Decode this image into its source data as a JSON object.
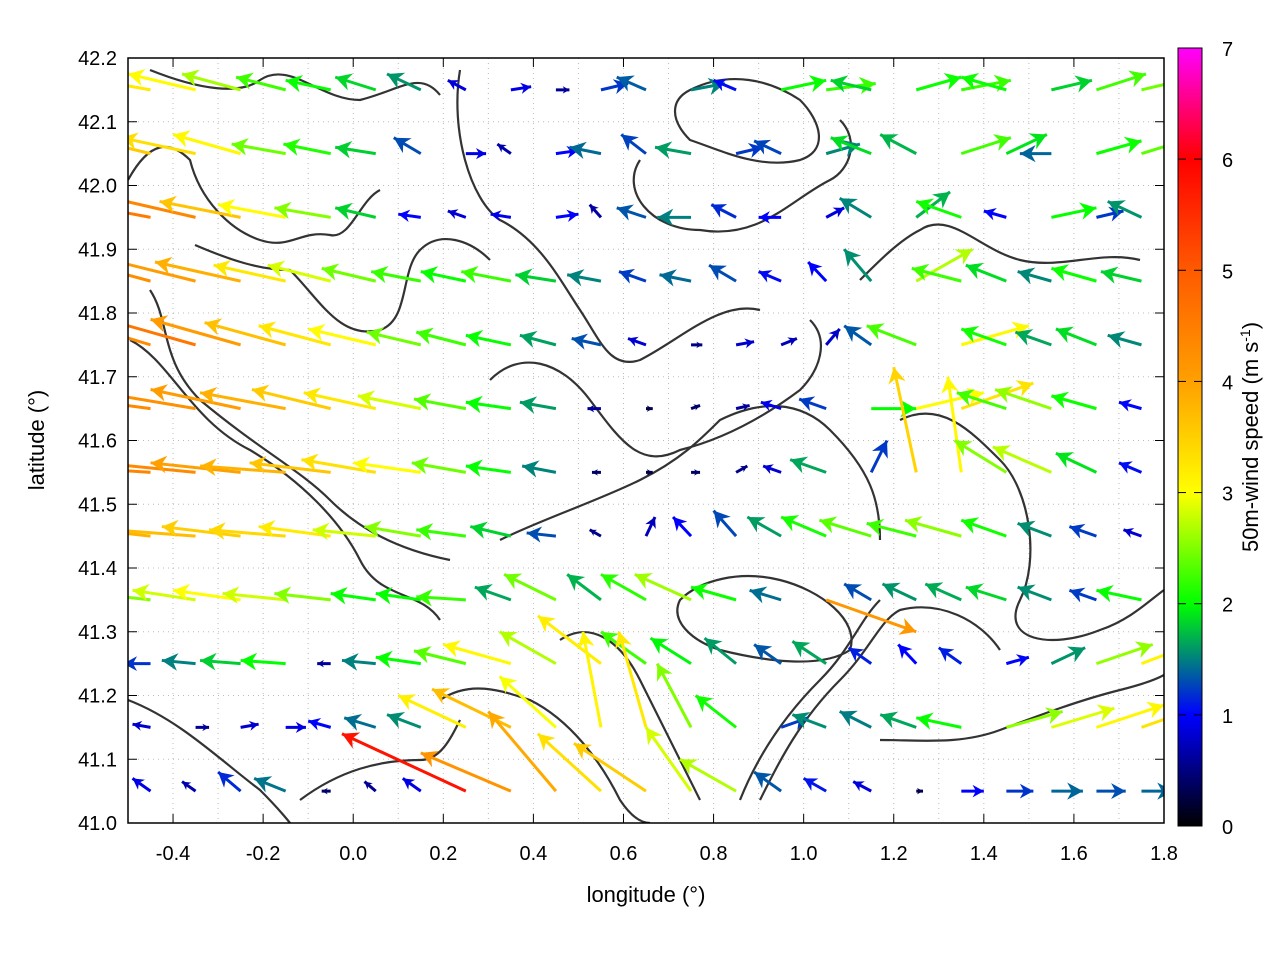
{
  "chart_data": {
    "type": "vector-field",
    "xlabel": "longitude (°)",
    "ylabel": "latitude (°)",
    "xlim": [
      -0.5,
      1.8
    ],
    "ylim": [
      41.0,
      42.2
    ],
    "xticks": [
      "-0.4",
      "-0.2",
      "0.0",
      "0.2",
      "0.4",
      "0.6",
      "0.8",
      "1.0",
      "1.2",
      "1.4",
      "1.6",
      "1.8"
    ],
    "yticks": [
      "41.0",
      "41.1",
      "41.2",
      "41.3",
      "41.4",
      "41.5",
      "41.6",
      "41.7",
      "41.8",
      "41.9",
      "42.0",
      "42.1",
      "42.2"
    ],
    "grid": true,
    "colorbar": {
      "label": "50m-wind speed (m s",
      "label_sup": "-1",
      "label_end": ")",
      "range": [
        0,
        7
      ],
      "ticks": [
        "0",
        "1",
        "2",
        "3",
        "4",
        "5",
        "6",
        "7"
      ],
      "colors": [
        "#000000",
        "#0000ff",
        "#00ff00",
        "#ffff00",
        "#ffa000",
        "#ff5a00",
        "#ff0000",
        "#ff00ff"
      ]
    },
    "contour_color": "#333333",
    "vector_units": "m s-1",
    "lon": [
      -0.45,
      -0.35,
      -0.25,
      -0.15,
      -0.05,
      0.05,
      0.15,
      0.25,
      0.35,
      0.45,
      0.55,
      0.65,
      0.75,
      0.85,
      0.95,
      1.05,
      1.15,
      1.25,
      1.35,
      1.45,
      1.55,
      1.65,
      1.75
    ],
    "lat": [
      42.15,
      42.05,
      41.95,
      41.85,
      41.75,
      41.65,
      41.55,
      41.45,
      41.35,
      41.25,
      41.15,
      41.05
    ],
    "uv": [
      [
        [
          -3.2,
          0.4
        ],
        [
          -3,
          0.5
        ],
        [
          -2.6,
          0.5
        ],
        [
          -2.2,
          0.4
        ],
        [
          -2,
          0.3
        ],
        [
          -1.8,
          0.4
        ],
        [
          -1.5,
          0.5
        ],
        [
          -0.8,
          0.3
        ],
        [
          0.9,
          0.1
        ],
        [
          0.6,
          0
        ],
        [
          1.2,
          0.2
        ],
        [
          -1.3,
          0.4
        ],
        [
          1.5,
          0.2
        ],
        [
          -1,
          0.3
        ],
        [
          2,
          0.3
        ],
        [
          2.2,
          0.2
        ],
        [
          -1.8,
          0.3
        ],
        [
          2,
          0.4
        ],
        [
          2.2,
          0.3
        ],
        [
          -2,
          0.4
        ],
        [
          1.8,
          0.3
        ],
        [
          2.2,
          0.5
        ],
        [
          2.4,
          0.4
        ]
      ],
      [
        [
          -3.5,
          0.6
        ],
        [
          -3.3,
          0.5
        ],
        [
          -3,
          0.6
        ],
        [
          -2.4,
          0.3
        ],
        [
          -2.1,
          0.3
        ],
        [
          -1.8,
          0.2
        ],
        [
          -1.2,
          0.5
        ],
        [
          0.9,
          0
        ],
        [
          -0.6,
          0.3
        ],
        [
          1,
          0.1
        ],
        [
          -1.4,
          0.2
        ],
        [
          -1.1,
          0.6
        ],
        [
          -1.6,
          0.2
        ],
        [
          1.2,
          0.2
        ],
        [
          -1.2,
          0.4
        ],
        [
          1.5,
          0.3
        ],
        [
          -1.8,
          0.5
        ],
        [
          -1.6,
          0.6
        ],
        [
          2.2,
          0.5
        ],
        [
          1.8,
          0.6
        ],
        [
          -1.4,
          0
        ],
        [
          2,
          0.4
        ],
        [
          2.3,
          0.5
        ]
      ],
      [
        [
          -4.5,
          0.6
        ],
        [
          -4.3,
          0.7
        ],
        [
          -3.6,
          0.5
        ],
        [
          -3,
          0.4
        ],
        [
          -2.5,
          0.3
        ],
        [
          -1.8,
          0.3
        ],
        [
          -1,
          0.1
        ],
        [
          -0.8,
          0.2
        ],
        [
          -0.9,
          0.1
        ],
        [
          1,
          0.1
        ],
        [
          -0.5,
          0.4
        ],
        [
          -1.3,
          0.3
        ],
        [
          -1.5,
          0
        ],
        [
          -1.1,
          0.4
        ],
        [
          -1,
          0
        ],
        [
          0.8,
          0.3
        ],
        [
          -1.4,
          0.6
        ],
        [
          1.5,
          0.8
        ],
        [
          -2,
          0.5
        ],
        [
          -1,
          0.2
        ],
        [
          2,
          0.3
        ],
        [
          1.2,
          0.2
        ],
        [
          -1.5,
          0.5
        ]
      ],
      [
        [
          -4.2,
          0.8
        ],
        [
          -4,
          0.7
        ],
        [
          -3.8,
          0.6
        ],
        [
          -3.2,
          0.5
        ],
        [
          -2.8,
          0.5
        ],
        [
          -2.4,
          0.4
        ],
        [
          -2.2,
          0.3
        ],
        [
          -2,
          0.3
        ],
        [
          -2.2,
          0.3
        ],
        [
          -1.8,
          0.2
        ],
        [
          -1.5,
          0.2
        ],
        [
          -1.2,
          0.3
        ],
        [
          -1.4,
          0.2
        ],
        [
          -1.2,
          0.5
        ],
        [
          -1,
          0.3
        ],
        [
          -0.8,
          0.6
        ],
        [
          -1.2,
          1
        ],
        [
          2.5,
          1
        ],
        [
          -2.2,
          0.4
        ],
        [
          -1.8,
          0.5
        ],
        [
          -1.5,
          0.3
        ],
        [
          -2,
          0.4
        ],
        [
          -1.8,
          0.3
        ]
      ],
      [
        [
          -4.2,
          0.9
        ],
        [
          -4.5,
          0.9
        ],
        [
          -4,
          0.8
        ],
        [
          -3.6,
          0.7
        ],
        [
          -3.2,
          0.6
        ],
        [
          -3,
          0.5
        ],
        [
          -2.4,
          0.4
        ],
        [
          -2.2,
          0.4
        ],
        [
          -2,
          0.3
        ],
        [
          -1.6,
          0.3
        ],
        [
          -1.3,
          0.2
        ],
        [
          -0.8,
          0.2
        ],
        [
          0.5,
          0
        ],
        [
          0.8,
          0.1
        ],
        [
          0.7,
          0.2
        ],
        [
          0.6,
          0.5
        ],
        [
          -1.2,
          0.6
        ],
        [
          -2.2,
          0.6
        ],
        [
          3,
          0.6
        ],
        [
          -2,
          0.5
        ],
        [
          -1.6,
          0.4
        ],
        [
          -1.8,
          0.5
        ],
        [
          -1.5,
          0.3
        ]
      ],
      [
        [
          -4.3,
          0.4
        ],
        [
          -4.2,
          0.5
        ],
        [
          -4,
          0.6
        ],
        [
          -3.8,
          0.5
        ],
        [
          -3.5,
          0.6
        ],
        [
          -3.2,
          0.5
        ],
        [
          -2.8,
          0.4
        ],
        [
          -2.3,
          0.3
        ],
        [
          -2,
          0.2
        ],
        [
          -1.6,
          0.2
        ],
        [
          -0.6,
          0
        ],
        [
          0.3,
          0
        ],
        [
          0.4,
          0.1
        ],
        [
          0.6,
          0.1
        ],
        [
          -0.9,
          0.2
        ],
        [
          -1.2,
          0.3
        ],
        [
          2,
          0
        ],
        [
          3,
          0.5
        ],
        [
          3.2,
          0.8
        ],
        [
          -2.2,
          0.5
        ],
        [
          -2.5,
          0.6
        ],
        [
          -2,
          0.4
        ],
        [
          -1,
          0.2
        ]
      ],
      [
        [
          -4.4,
          0.2
        ],
        [
          -4.3,
          0.3
        ],
        [
          -4,
          0.3
        ],
        [
          -3.8,
          0.2
        ],
        [
          -3.6,
          0.3
        ],
        [
          -3.3,
          0.4
        ],
        [
          -3,
          0.3
        ],
        [
          -2.4,
          0.3
        ],
        [
          -2,
          0.2
        ],
        [
          -1.5,
          0.2
        ],
        [
          -0.4,
          0
        ],
        [
          0.3,
          0
        ],
        [
          0.4,
          0
        ],
        [
          0.5,
          0.2
        ],
        [
          -0.8,
          0.2
        ],
        [
          -1.6,
          0.4
        ],
        [
          0.7,
          1
        ],
        [
          -1,
          3.3
        ],
        [
          -0.6,
          3
        ],
        [
          -2.3,
          1
        ],
        [
          -2.6,
          0.8
        ],
        [
          -1.8,
          0.6
        ],
        [
          -1,
          0.3
        ]
      ],
      [
        [
          -3.8,
          0.3
        ],
        [
          -3.7,
          0.2
        ],
        [
          -3.5,
          0.3
        ],
        [
          -3.4,
          0.2
        ],
        [
          -3.2,
          0.3
        ],
        [
          -2.8,
          0.2
        ],
        [
          -2.5,
          0.3
        ],
        [
          -2.2,
          0.2
        ],
        [
          -1.8,
          0.3
        ],
        [
          -1.3,
          0.1
        ],
        [
          -0.5,
          0.2
        ],
        [
          0.4,
          0.6
        ],
        [
          -0.8,
          0.6
        ],
        [
          -1,
          0.8
        ],
        [
          -1.5,
          0.6
        ],
        [
          -2,
          0.6
        ],
        [
          -2.3,
          0.5
        ],
        [
          -2.2,
          0.4
        ],
        [
          -2.5,
          0.5
        ],
        [
          -2,
          0.5
        ],
        [
          -1.5,
          0.4
        ],
        [
          -1.2,
          0.3
        ],
        [
          -0.8,
          0.2
        ]
      ],
      [
        [
          -2.5,
          0.2
        ],
        [
          -2.8,
          0.3
        ],
        [
          -3,
          0.3
        ],
        [
          -2.8,
          0.2
        ],
        [
          -2.5,
          0.2
        ],
        [
          -2,
          0.2
        ],
        [
          -2,
          0.2
        ],
        [
          -2.2,
          0.1
        ],
        [
          -1.6,
          0.4
        ],
        [
          -2.3,
          0.8
        ],
        [
          -1.5,
          0.8
        ],
        [
          -2,
          0.8
        ],
        [
          -2.5,
          0.8
        ],
        [
          -2,
          0.4
        ],
        [
          -1.4,
          0.3
        ],
        [
          4,
          -1
        ],
        [
          -1.2,
          0.5
        ],
        [
          -1.5,
          0.5
        ],
        [
          -1.6,
          0.5
        ],
        [
          -1.8,
          0.4
        ],
        [
          -1.5,
          0.4
        ],
        [
          -1.2,
          0.3
        ],
        [
          -2,
          0.3
        ]
      ],
      [
        [
          -1.2,
          0
        ],
        [
          -1.5,
          0.1
        ],
        [
          -1.8,
          0.1
        ],
        [
          -2,
          0.1
        ],
        [
          -0.6,
          0
        ],
        [
          -1.5,
          0.1
        ],
        [
          -2,
          0.2
        ],
        [
          -2.3,
          0.4
        ],
        [
          -3,
          0.6
        ],
        [
          -2.5,
          1
        ],
        [
          -2.8,
          1.5
        ],
        [
          -2,
          1
        ],
        [
          -1.8,
          0.8
        ],
        [
          -1.4,
          0.8
        ],
        [
          -1.2,
          0.6
        ],
        [
          -1.5,
          0.7
        ],
        [
          -1,
          0.5
        ],
        [
          -0.8,
          0.6
        ],
        [
          -1,
          0.5
        ],
        [
          1,
          0.2
        ],
        [
          1.5,
          0.5
        ],
        [
          2.5,
          0.6
        ],
        [
          3,
          0.8
        ]
      ],
      [
        [
          -0.8,
          0.1
        ],
        [
          0.6,
          0
        ],
        [
          0.8,
          0.1
        ],
        [
          0.9,
          0
        ],
        [
          -1,
          0.2
        ],
        [
          -1.4,
          0.3
        ],
        [
          -1.5,
          0.4
        ],
        [
          -3,
          1
        ],
        [
          -3.5,
          1.2
        ],
        [
          -2.5,
          1.6
        ],
        [
          -0.8,
          3
        ],
        [
          -1.2,
          3
        ],
        [
          -1.5,
          2
        ],
        [
          -1.8,
          1
        ],
        [
          1.2,
          0.3
        ],
        [
          -1.5,
          0.4
        ],
        [
          -1.4,
          0.5
        ],
        [
          -1.6,
          0.4
        ],
        [
          -2,
          0.3
        ],
        [
          2.5,
          0.5
        ],
        [
          2.8,
          0.6
        ],
        [
          3,
          0.7
        ],
        [
          3.2,
          0.8
        ]
      ],
      [
        [
          -0.8,
          0.4
        ],
        [
          -0.6,
          0.3
        ],
        [
          -1,
          0.6
        ],
        [
          -1.4,
          0.4
        ],
        [
          -0.4,
          0
        ],
        [
          -0.5,
          0.3
        ],
        [
          -0.8,
          0.4
        ],
        [
          -5.5,
          1.8
        ],
        [
          -4,
          1.2
        ],
        [
          -3,
          2.5
        ],
        [
          -2.8,
          1.8
        ],
        [
          -3.2,
          1.5
        ],
        [
          -2,
          2
        ],
        [
          -2.5,
          1
        ],
        [
          -1.2,
          0.6
        ],
        [
          -1,
          0.4
        ],
        [
          -0.8,
          0.3
        ],
        [
          0.3,
          0
        ],
        [
          1,
          0
        ],
        [
          1.2,
          0
        ],
        [
          1.4,
          0
        ],
        [
          1.3,
          0
        ],
        [
          1.4,
          0
        ]
      ]
    ]
  }
}
